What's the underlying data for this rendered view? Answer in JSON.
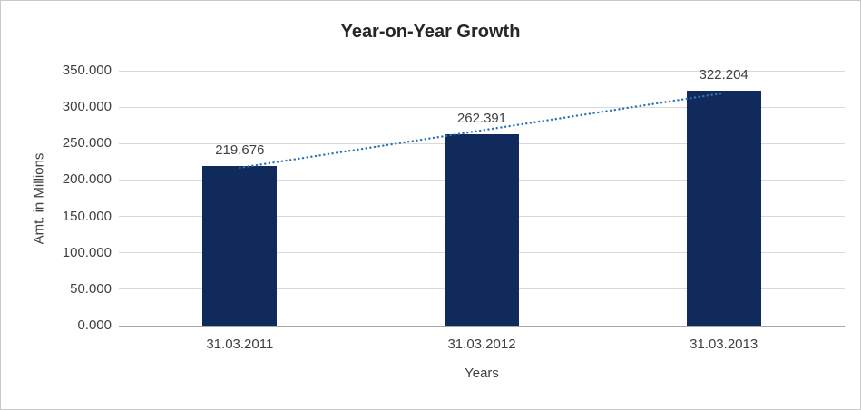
{
  "chart_data": {
    "type": "bar",
    "title": "Year-on-Year Growth",
    "xlabel": "Years",
    "ylabel": "Amt. in Millions",
    "categories": [
      "31.03.2011",
      "31.03.2012",
      "31.03.2013"
    ],
    "values": [
      219.676,
      262.391,
      322.204
    ],
    "labels": [
      "219.676",
      "262.391",
      "322.204"
    ],
    "ylim": [
      0,
      350
    ],
    "ytick_step": 50,
    "ytick_labels": [
      "0.000",
      "50.000",
      "100.000",
      "150.000",
      "200.000",
      "250.000",
      "300.000",
      "350.000"
    ],
    "grid": true,
    "legend": "none",
    "bar_color": "#112a5c",
    "trendline": {
      "type": "linear",
      "style": "dotted",
      "color": "#2e75b6"
    }
  }
}
